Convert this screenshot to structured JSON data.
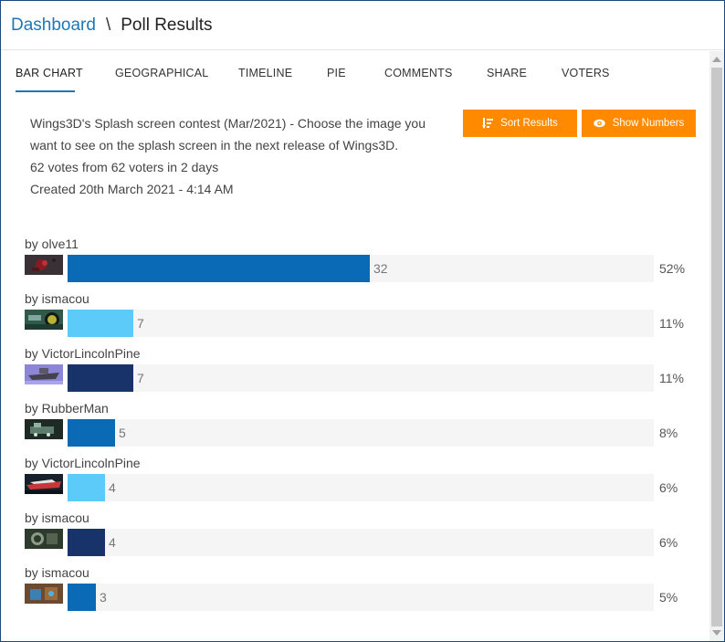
{
  "breadcrumb": {
    "home": "Dashboard",
    "separator": "\\",
    "current": "Poll Results"
  },
  "tabs": [
    "BAR CHART",
    "GEOGRAPHICAL",
    "TIMELINE",
    "PIE",
    "COMMENTS",
    "SHARE",
    "VOTERS"
  ],
  "active_tab": "BAR CHART",
  "poll": {
    "question_line1": "Wings3D's Splash screen contest (Mar/2021) - Choose the image you",
    "question_line2": "want to see on the splash screen in the next release of Wings3D.",
    "votes_summary": "62 votes from 62 voters in 2 days",
    "created": "Created 20th March 2021 - 4:14 AM"
  },
  "buttons": {
    "sort": "Sort Results",
    "show_numbers": "Show Numbers"
  },
  "colors": {
    "accent": "#1f77b4",
    "button": "#ff8a00",
    "bar_blue": "#0a6ab6",
    "bar_light": "#5ccbfa",
    "bar_navy": "#17336a",
    "track": "#f5f5f5"
  },
  "chart_data": {
    "type": "bar",
    "orientation": "horizontal",
    "max_votes": 62,
    "categories": [
      "by olve11",
      "by ismacou",
      "by VictorLincolnPine",
      "by RubberMan",
      "by VictorLincolnPine",
      "by ismacou",
      "by ismacou"
    ],
    "values": [
      32,
      7,
      7,
      5,
      4,
      4,
      3
    ],
    "percent_labels": [
      "52%",
      "11%",
      "11%",
      "8%",
      "6%",
      "6%",
      "5%"
    ],
    "bar_colors": [
      "#0a6ab6",
      "#5ccbfa",
      "#17336a",
      "#0a6ab6",
      "#5ccbfa",
      "#17336a",
      "#0a6ab6"
    ]
  }
}
